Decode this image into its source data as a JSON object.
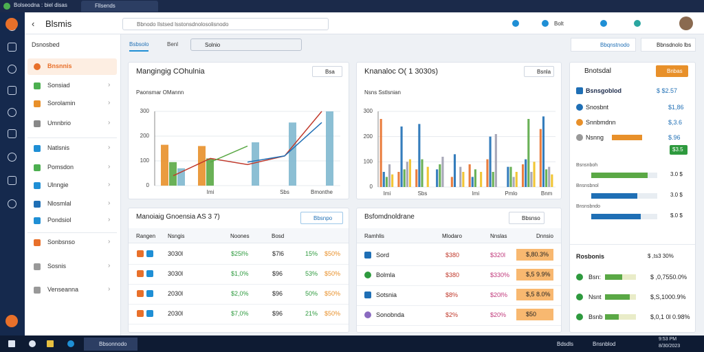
{
  "browser": {
    "tabs": [
      "Bolseodna : biel disas",
      "Fllsends"
    ]
  },
  "app": {
    "title": "Blsmis",
    "search": "Bbnodo Ilstsed lsstonsdnolosolisnodo",
    "user": "Bolt"
  },
  "sidebar": {
    "header": "Dsnosbed",
    "items": [
      {
        "label": "Bnsnnis",
        "color": "#e8702a",
        "active": true
      },
      {
        "label": "Sonsiad",
        "color": "#4caf50"
      },
      {
        "label": "Sorolamin",
        "color": "#e8902a"
      },
      {
        "label": "Umnbrio",
        "color": "#888888"
      },
      {
        "label": "Natlsnis",
        "color": "#1f8fd5"
      },
      {
        "label": "Pomsdon",
        "color": "#4caf50"
      },
      {
        "label": "Ulnngie",
        "color": "#1f8fd5"
      },
      {
        "label": "Nlosmlal",
        "color": "#1f6fb5"
      },
      {
        "label": "Pondsiol",
        "color": "#1f8fd5"
      },
      {
        "label": "Sonbsnso",
        "color": "#e8702a"
      },
      {
        "label": "Sosnis",
        "color": "#999999"
      },
      {
        "label": "Venseanna",
        "color": "#999999"
      }
    ]
  },
  "toolbar": {
    "tabs": [
      "Bsbsolo",
      "Benl"
    ],
    "select": "Solnio",
    "buttons": [
      "Bbqnstnodo",
      "Bbnsdnolo lbs"
    ]
  },
  "chart_data": [
    {
      "type": "bar",
      "title": "Mangingig COhulnia",
      "button": "Bsa",
      "subtitle": "Paonsmar OMannn",
      "categories": [
        null,
        "Imi",
        null,
        "Sbs",
        "Bmonthe"
      ],
      "ylim": [
        0,
        300
      ],
      "yticks": [
        0,
        100,
        200,
        300
      ],
      "series": [
        {
          "type": "bar",
          "color": "#e8902a",
          "values": [
            165,
            160,
            null,
            null,
            null
          ]
        },
        {
          "type": "bar",
          "color": "#5aa845",
          "values": [
            95,
            110,
            null,
            null,
            null
          ]
        },
        {
          "type": "bar",
          "color": "#7fb8cf",
          "values": [
            70,
            null,
            175,
            255,
            300
          ]
        },
        {
          "type": "line",
          "color": "#c0392b",
          "values": [
            40,
            110,
            85,
            120,
            300
          ]
        },
        {
          "type": "line",
          "color": "#1f6fb5",
          "values": [
            null,
            null,
            95,
            120,
            255
          ]
        },
        {
          "type": "line",
          "color": "#5aa845",
          "values": [
            null,
            95,
            160,
            null,
            null
          ]
        }
      ]
    },
    {
      "type": "bar",
      "title": "Knanaloc O( 1 3030s)",
      "button": "Bsnla",
      "subtitle": "Nsns Sstlsnian",
      "categories": [
        "Imi",
        null,
        "Sbs",
        null,
        null,
        "Imi",
        null,
        "Pmlo",
        null,
        "Bnm"
      ],
      "ylim": [
        0,
        300
      ],
      "yticks": [
        0,
        100,
        200,
        300
      ],
      "series": [
        {
          "type": "bar",
          "color": "#e8702a",
          "values": [
            270,
            60,
            70,
            null,
            40,
            90,
            110,
            null,
            90,
            230
          ]
        },
        {
          "type": "bar",
          "color": "#1f6fb5",
          "values": [
            60,
            240,
            250,
            70,
            130,
            40,
            200,
            80,
            110,
            280
          ]
        },
        {
          "type": "bar",
          "color": "#5aa845",
          "values": [
            40,
            70,
            110,
            90,
            null,
            70,
            60,
            80,
            270,
            70
          ]
        },
        {
          "type": "bar",
          "color": "#9e9eb0",
          "values": [
            90,
            100,
            null,
            120,
            80,
            null,
            210,
            40,
            60,
            80
          ]
        },
        {
          "type": "bar",
          "color": "#f0c020",
          "values": [
            50,
            110,
            80,
            null,
            60,
            60,
            null,
            60,
            100,
            50
          ]
        }
      ]
    }
  ],
  "table1": {
    "title": "Manoiaig Gnoensia AS 3 7)",
    "button": "Bbsnpo",
    "columns": [
      "Rangen",
      "Nsngis",
      "Noones",
      "Bosd"
    ],
    "rows": [
      [
        "3030l",
        "$25l%",
        "$7l6",
        "15%",
        "$50%"
      ],
      [
        "3030l",
        "$1,0%",
        "$96",
        "53%",
        "$50%"
      ],
      [
        "2030l",
        "$2,0%",
        "$96",
        "50%",
        "$50%"
      ],
      [
        "2030l",
        "$7,0%",
        "$96",
        "21%",
        "$50%"
      ]
    ]
  },
  "table2": {
    "title": "Bsfomdnoldrane",
    "button": "Bbsnso",
    "columns": [
      "Ramhlis",
      "Mlodaro",
      "Nnslas",
      "Dnnsio"
    ],
    "rows": [
      [
        "Sord",
        "$380",
        "$320l",
        "$,80.3%"
      ],
      [
        "Bolmla",
        "$380",
        "$330%",
        "$,5 9.9%"
      ],
      [
        "Sotsnia",
        "$8%",
        "$20l%",
        "$,5 8.0%"
      ],
      [
        "Sonobnda",
        "$2%",
        "$20%",
        "$50"
      ]
    ]
  },
  "right": {
    "title": "Bnotsdal",
    "button": "Bnbas",
    "head": [
      "Bsnsgoblod",
      "$ $2.57"
    ],
    "items": [
      [
        "Snosbnt",
        "$1,86"
      ],
      [
        "Snnbmdnn",
        "$,3.6"
      ],
      [
        "Nsnng",
        "$.96"
      ]
    ],
    "badge": "$3.5",
    "bars": [
      {
        "label": "Bsnsnboh",
        "value": "3.0 $",
        "pct": 85,
        "color": "#5aa845"
      },
      {
        "label": "Bnsnsbnol",
        "value": "3.0 $",
        "pct": 70,
        "color": "#1f6fb5"
      },
      {
        "label": "Bnsnsbndo",
        "value": "$.0 $",
        "pct": 75,
        "color": "#1f6fb5"
      }
    ],
    "list_title": "Rosbonis",
    "list_value": "$ ,ts3 30%",
    "list": [
      {
        "label": "Bsn:",
        "value": "$ ,0,7550.0%",
        "pct": 55
      },
      {
        "label": "Nsnt",
        "value": "$,S,1000.9%",
        "pct": 80
      },
      {
        "label": "Bsnb",
        "value": "$,0,1 0l 0.98%",
        "pct": 45
      }
    ]
  },
  "taskbar": {
    "app": "Bbsonnodo",
    "items": [
      "Bdsdls",
      "Bnsnblod"
    ],
    "clock": [
      "9:53 PM",
      "8/30/2023"
    ]
  }
}
